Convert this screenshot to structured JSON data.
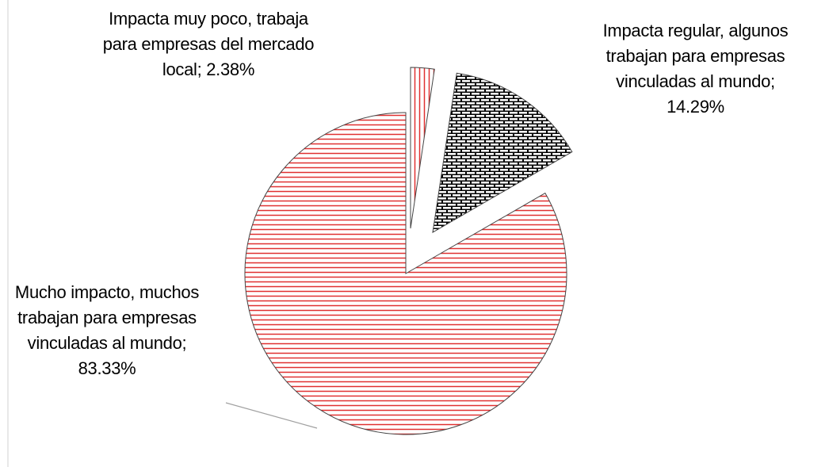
{
  "chart_data": {
    "type": "pie",
    "values": [
      2.38,
      14.29,
      83.33
    ],
    "value_labels": [
      "Impacta muy poco, trabaja para empresas del mercado local; 2.38%",
      "Impacta regular, algunos trabajan para empresas vinculadas al mundo; 14.29%",
      "Mucho impacto, muchos trabajan para empresas vinculadas al mundo; 83.33%"
    ],
    "colors": [
      "#e03030",
      "#000000",
      "#e03030"
    ]
  }
}
